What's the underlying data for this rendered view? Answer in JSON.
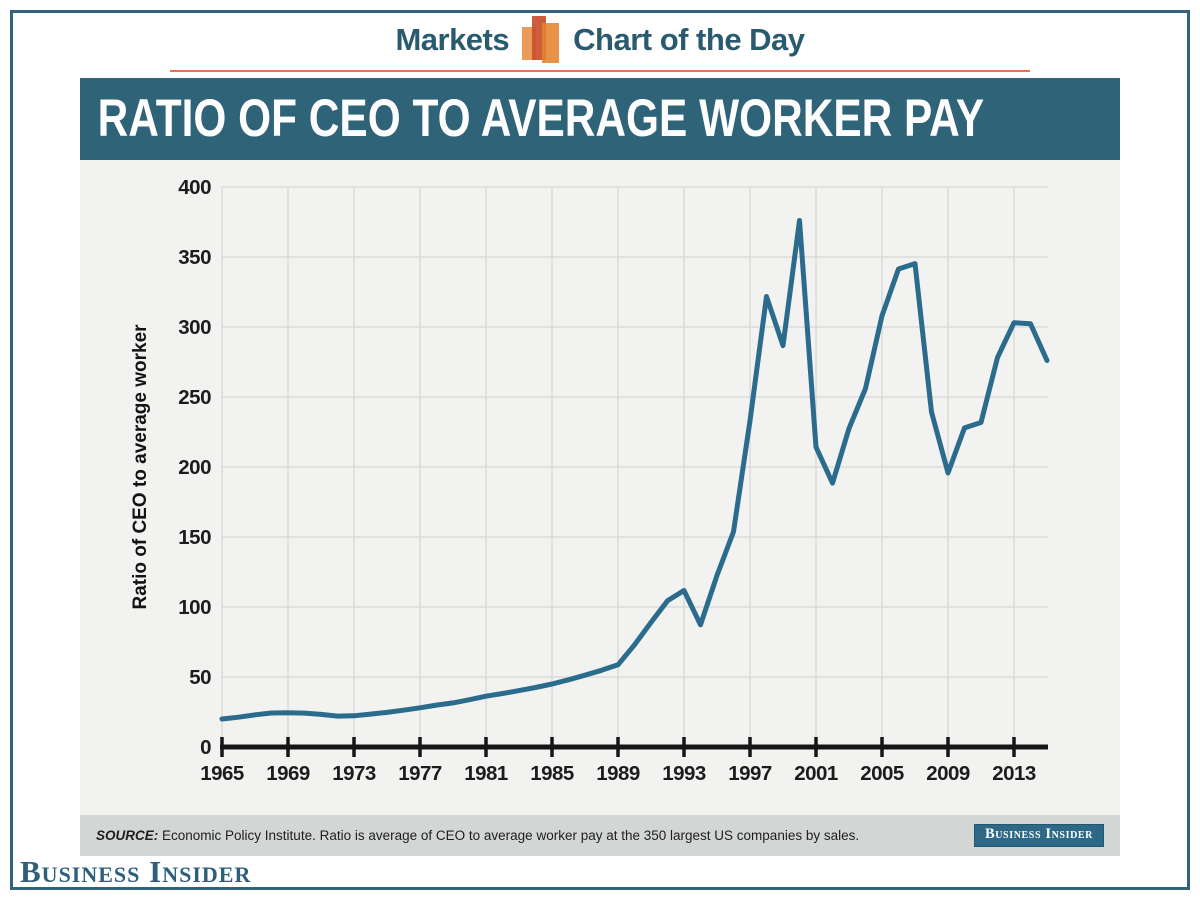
{
  "header": {
    "left_label": "Markets",
    "right_label": "Chart of the Day",
    "icon": "bar-chart-icon",
    "icon_colors": [
      "#eb9b57",
      "#c8502d",
      "#e5832f"
    ]
  },
  "banner": {
    "title": "RATIO OF CEO TO AVERAGE WORKER PAY"
  },
  "footer": {
    "source_label": "SOURCE:",
    "source_text": " Economic Policy Institute. Ratio is average of CEO to average worker pay at the 350 largest US companies by sales.",
    "badge_label": "Business Insider"
  },
  "logo_text": "Business Insider",
  "colors": {
    "accent_teal": "#2e6378",
    "header_text": "#2a5a70",
    "orange_rule": "#e4744d",
    "chart_background": "#f2f2f1",
    "source_bar_background": "#d3d6d5",
    "gridline": "#d7d8d7",
    "axis": "#161616",
    "line": "#2b6b8c",
    "page_border": "#33627c"
  },
  "chart_data": {
    "type": "line",
    "title": "RATIO OF CEO TO AVERAGE WORKER PAY",
    "xlabel": "",
    "ylabel": "Ratio of CEO to average worker",
    "xlim": [
      1965,
      2015
    ],
    "ylim": [
      0,
      400
    ],
    "ytick_interval": 50,
    "yticks": [
      0,
      50,
      100,
      150,
      200,
      250,
      300,
      350,
      400
    ],
    "xticks": [
      1965,
      1969,
      1973,
      1977,
      1981,
      1985,
      1989,
      1993,
      1997,
      2001,
      2005,
      2009,
      2013
    ],
    "grid": true,
    "legend": "none",
    "series": [
      {
        "name": "CEO-to-average-worker pay ratio",
        "color": "#2b6b8c",
        "x": [
          1965,
          1966,
          1967,
          1968,
          1969,
          1970,
          1971,
          1972,
          1973,
          1974,
          1975,
          1976,
          1977,
          1978,
          1979,
          1980,
          1981,
          1982,
          1983,
          1984,
          1985,
          1986,
          1987,
          1988,
          1989,
          1990,
          1991,
          1992,
          1993,
          1994,
          1995,
          1996,
          1997,
          1998,
          1999,
          2000,
          2001,
          2002,
          2003,
          2004,
          2005,
          2006,
          2007,
          2008,
          2009,
          2010,
          2011,
          2012,
          2013,
          2014,
          2015
        ],
        "values": [
          20.0,
          21.3,
          23.0,
          24.3,
          24.5,
          24.2,
          23.3,
          22.1,
          22.3,
          23.5,
          24.7,
          26.3,
          28.0,
          29.9,
          31.5,
          33.8,
          36.3,
          38.2,
          40.3,
          42.5,
          45.0,
          48.0,
          51.3,
          54.8,
          58.7,
          73.0,
          89.0,
          104.4,
          111.8,
          87.3,
          122.6,
          153.8,
          233.0,
          321.8,
          286.7,
          376.1,
          214.2,
          188.5,
          227.5,
          256.1,
          308.0,
          341.4,
          345.3,
          239.3,
          195.8,
          227.9,
          231.8,
          278.2,
          303.1,
          302.3,
          276.1
        ]
      }
    ]
  }
}
